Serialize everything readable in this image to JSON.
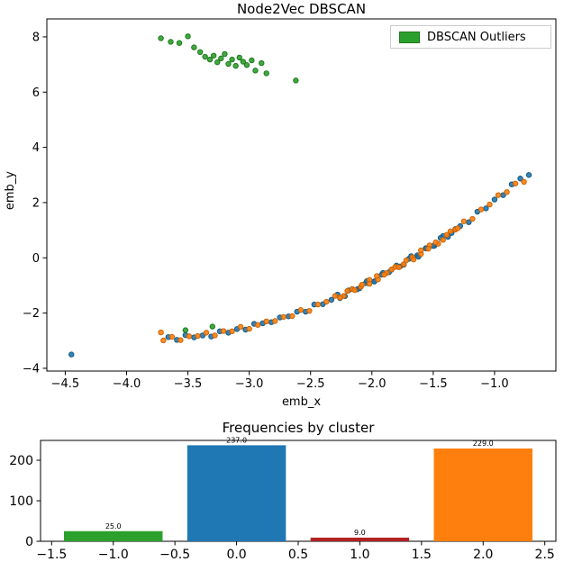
{
  "figure": {
    "background": "#ffffff"
  },
  "chart_data": [
    {
      "type": "scatter",
      "title": "Node2Vec DBSCAN",
      "xlabel": "emb_x",
      "ylabel": "emb_y",
      "xlim": [
        -4.65,
        -0.5
      ],
      "ylim": [
        -4.1,
        8.65
      ],
      "xticks": [
        -4.5,
        -4.0,
        -3.5,
        -3.0,
        -2.5,
        -2.0,
        -1.5,
        -1.0
      ],
      "yticks": [
        -4,
        -2,
        0,
        2,
        4,
        6,
        8
      ],
      "grid": false,
      "legend": {
        "position": "upper right",
        "entries": [
          {
            "label": "DBSCAN Outliers",
            "color": "#2ca02c"
          }
        ]
      },
      "series": [
        {
          "name": "cluster-blue",
          "color": "#1f77b4",
          "edge": "#15597f",
          "points": [
            [
              -4.45,
              -3.5
            ],
            [
              -3.66,
              -2.87
            ],
            [
              -3.59,
              -2.97
            ],
            [
              -3.52,
              -2.8
            ],
            [
              -3.45,
              -2.88
            ],
            [
              -3.38,
              -2.81
            ],
            [
              -3.31,
              -2.85
            ],
            [
              -3.24,
              -2.66
            ],
            [
              -3.17,
              -2.71
            ],
            [
              -3.1,
              -2.58
            ],
            [
              -3.03,
              -2.6
            ],
            [
              -2.96,
              -2.39
            ],
            [
              -2.89,
              -2.37
            ],
            [
              -2.82,
              -2.33
            ],
            [
              -2.75,
              -2.16
            ],
            [
              -2.68,
              -2.12
            ],
            [
              -2.61,
              -1.95
            ],
            [
              -2.54,
              -1.95
            ],
            [
              -2.47,
              -1.69
            ],
            [
              -2.4,
              -1.68
            ],
            [
              -2.33,
              -1.52
            ],
            [
              -2.26,
              -1.46
            ],
            [
              -2.19,
              -1.18
            ],
            [
              -2.12,
              -1.14
            ],
            [
              -2.05,
              -0.92
            ],
            [
              -1.98,
              -0.85
            ],
            [
              -1.91,
              -0.55
            ],
            [
              -1.84,
              -0.43
            ],
            [
              -1.77,
              -0.31
            ],
            [
              -1.7,
              -0.04
            ],
            [
              -1.63,
              0.09
            ],
            [
              -1.56,
              0.35
            ],
            [
              -1.49,
              0.44
            ],
            [
              -1.42,
              0.79
            ],
            [
              -1.35,
              0.9
            ],
            [
              -1.28,
              1.15
            ],
            [
              -1.21,
              1.29
            ],
            [
              -1.14,
              1.67
            ],
            [
              -1.07,
              1.79
            ],
            [
              -1.0,
              2.11
            ],
            [
              -0.93,
              2.27
            ],
            [
              -0.86,
              2.66
            ],
            [
              -0.79,
              2.87
            ],
            [
              -0.72,
              3.0
            ],
            [
              -2.28,
              -1.33
            ],
            [
              -2.22,
              -1.39
            ],
            [
              -2.16,
              -1.13
            ],
            [
              -2.1,
              -1.1
            ],
            [
              -2.04,
              -0.84
            ],
            [
              -1.98,
              -0.86
            ],
            [
              -1.92,
              -0.61
            ],
            [
              -1.86,
              -0.52
            ],
            [
              -1.8,
              -0.28
            ],
            [
              -1.74,
              -0.25
            ],
            [
              -1.68,
              0.06
            ],
            [
              -1.62,
              0.04
            ],
            [
              -1.56,
              0.34
            ],
            [
              -1.5,
              0.43
            ],
            [
              -1.44,
              0.72
            ],
            [
              -1.38,
              0.76
            ],
            [
              -1.32,
              1.04
            ]
          ]
        },
        {
          "name": "cluster-orange",
          "color": "#ff7f0e",
          "edge": "#c96407",
          "points": [
            [
              -3.72,
              -2.7
            ],
            [
              -3.7,
              -2.99
            ],
            [
              -3.63,
              -2.86
            ],
            [
              -3.56,
              -2.98
            ],
            [
              -3.49,
              -2.84
            ],
            [
              -3.42,
              -2.83
            ],
            [
              -3.35,
              -2.71
            ],
            [
              -3.28,
              -2.81
            ],
            [
              -3.21,
              -2.65
            ],
            [
              -3.14,
              -2.66
            ],
            [
              -3.07,
              -2.5
            ],
            [
              -3.0,
              -2.57
            ],
            [
              -2.93,
              -2.43
            ],
            [
              -2.86,
              -2.3
            ],
            [
              -2.79,
              -2.29
            ],
            [
              -2.72,
              -2.14
            ],
            [
              -2.65,
              -2.11
            ],
            [
              -2.58,
              -1.89
            ],
            [
              -2.51,
              -1.92
            ],
            [
              -2.44,
              -1.69
            ],
            [
              -2.37,
              -1.59
            ],
            [
              -2.3,
              -1.38
            ],
            [
              -2.23,
              -1.38
            ],
            [
              -2.16,
              -1.13
            ],
            [
              -2.09,
              -1.05
            ],
            [
              -2.02,
              -0.8
            ],
            [
              -1.95,
              -0.78
            ],
            [
              -1.88,
              -0.55
            ],
            [
              -1.81,
              -0.33
            ],
            [
              -1.74,
              -0.23
            ],
            [
              -1.67,
              0.02
            ],
            [
              -1.6,
              0.14
            ],
            [
              -1.53,
              0.45
            ],
            [
              -1.46,
              0.51
            ],
            [
              -1.39,
              0.83
            ],
            [
              -1.32,
              1.02
            ],
            [
              -1.25,
              1.32
            ],
            [
              -1.18,
              1.41
            ],
            [
              -1.11,
              1.75
            ],
            [
              -1.04,
              1.93
            ],
            [
              -0.97,
              2.27
            ],
            [
              -0.9,
              2.38
            ],
            [
              -0.83,
              2.69
            ],
            [
              -0.76,
              2.75
            ],
            [
              -2.26,
              -1.44
            ],
            [
              -2.2,
              -1.2
            ],
            [
              -2.14,
              -1.17
            ],
            [
              -2.08,
              -0.97
            ],
            [
              -2.02,
              -0.94
            ],
            [
              -1.96,
              -0.66
            ],
            [
              -1.9,
              -0.61
            ],
            [
              -1.84,
              -0.42
            ],
            [
              -1.78,
              -0.34
            ],
            [
              -1.72,
              -0.09
            ],
            [
              -1.66,
              -0.06
            ],
            [
              -1.6,
              0.27
            ],
            [
              -1.54,
              0.33
            ],
            [
              -1.48,
              0.56
            ],
            [
              -1.42,
              0.65
            ],
            [
              -1.36,
              0.96
            ],
            [
              -1.3,
              1.07
            ]
          ]
        },
        {
          "name": "dbscan-outliers",
          "color": "#2ca02c",
          "edge": "#1e7a1e",
          "points": [
            [
              -3.72,
              7.95
            ],
            [
              -3.64,
              7.82
            ],
            [
              -3.57,
              7.78
            ],
            [
              -3.5,
              8.02
            ],
            [
              -3.45,
              7.62
            ],
            [
              -3.4,
              7.45
            ],
            [
              -3.36,
              7.28
            ],
            [
              -3.32,
              7.18
            ],
            [
              -3.29,
              7.32
            ],
            [
              -3.26,
              7.08
            ],
            [
              -3.23,
              7.22
            ],
            [
              -3.2,
              7.38
            ],
            [
              -3.17,
              7.02
            ],
            [
              -3.14,
              7.18
            ],
            [
              -3.11,
              6.95
            ],
            [
              -3.08,
              7.25
            ],
            [
              -3.05,
              7.1
            ],
            [
              -3.02,
              6.98
            ],
            [
              -2.98,
              7.15
            ],
            [
              -2.95,
              6.78
            ],
            [
              -2.9,
              7.05
            ],
            [
              -2.86,
              6.68
            ],
            [
              -2.62,
              6.42
            ],
            [
              -3.52,
              -2.62
            ],
            [
              -3.3,
              -2.49
            ]
          ]
        }
      ]
    },
    {
      "type": "bar",
      "title": "Frequencies by cluster",
      "categories": [
        -1,
        0,
        1,
        2
      ],
      "values": [
        25.0,
        237.0,
        9.0,
        229.0
      ],
      "bar_labels": [
        "25.0",
        "237.0",
        "9.0",
        "229.0"
      ],
      "colors": [
        "#2ca02c",
        "#1f77b4",
        "#b22222",
        "#ff7f0e"
      ],
      "bar_width": 0.8,
      "xlim": [
        -1.59,
        2.59
      ],
      "ylim": [
        0,
        249
      ],
      "xticks": [
        -1.5,
        -1.0,
        -0.5,
        0.0,
        0.5,
        1.0,
        1.5,
        2.0,
        2.5
      ],
      "yticks": [
        0,
        100,
        200
      ],
      "xlabel": "",
      "ylabel": ""
    }
  ]
}
